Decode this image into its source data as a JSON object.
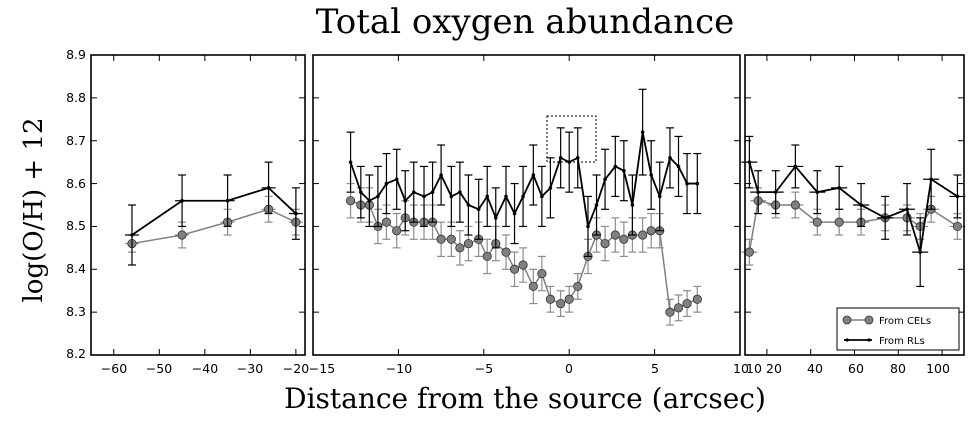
{
  "figure": {
    "title": "Total oxygen abundance",
    "xlabel": "Distance from the source (arcsec)",
    "ylabel": "log(O/H) + 12",
    "y_ticks": [
      "8.2",
      "8.3",
      "8.4",
      "8.5",
      "8.6",
      "8.7",
      "8.8",
      "8.9"
    ]
  },
  "legend": {
    "cels": "From CELs",
    "rls": "From RLs"
  },
  "chart_data": [
    {
      "type": "line",
      "panel": "left",
      "xlim": [
        -65,
        -18
      ],
      "ylim": [
        8.2,
        8.9
      ],
      "x_ticks": [
        "−60",
        "−50",
        "−40",
        "−30",
        "−20"
      ],
      "grid": false,
      "series": [
        {
          "name": "From CELs",
          "color": "#808080",
          "x": [
            -56,
            -45,
            -35,
            -26,
            -20
          ],
          "y": [
            8.46,
            8.48,
            8.51,
            8.54,
            8.51
          ],
          "err": [
            0.02,
            0.03,
            0.03,
            0.03,
            0.03
          ]
        },
        {
          "name": "From RLs",
          "color": "#000000",
          "x": [
            -56,
            -45,
            -35,
            -26,
            -20
          ],
          "y": [
            8.48,
            8.56,
            8.56,
            8.59,
            8.53
          ],
          "err": [
            0.07,
            0.06,
            0.06,
            0.06,
            0.06
          ]
        }
      ]
    },
    {
      "type": "line",
      "panel": "middle",
      "xlim": [
        -15,
        10
      ],
      "ylim": [
        8.2,
        8.9
      ],
      "x_ticks": [
        "−15",
        "−10",
        "−5",
        "0",
        "5",
        "10"
      ],
      "grid": false,
      "box": {
        "x": [
          -1.5,
          1.5
        ],
        "y": [
          8.62,
          8.76
        ]
      },
      "series": [
        {
          "name": "From CELs",
          "color": "#808080",
          "x": [
            -12.8,
            -12.2,
            -11.7,
            -11.2,
            -10.7,
            -10.1,
            -9.6,
            -9.1,
            -8.5,
            -8.0,
            -7.5,
            -6.9,
            -6.4,
            -5.9,
            -5.3,
            -4.8,
            -4.3,
            -3.7,
            -3.2,
            -2.7,
            -2.1,
            -1.6,
            -1.1,
            -0.5,
            0,
            0.5,
            1.1,
            1.6,
            2.1,
            2.7,
            3.2,
            3.7,
            4.3,
            4.8,
            5.3,
            5.9,
            6.4,
            6.9,
            7.5
          ],
          "y": [
            8.56,
            8.55,
            8.55,
            8.5,
            8.51,
            8.49,
            8.52,
            8.51,
            8.51,
            8.51,
            8.47,
            8.47,
            8.45,
            8.46,
            8.47,
            8.43,
            8.46,
            8.44,
            8.4,
            8.41,
            8.36,
            8.39,
            8.33,
            8.32,
            8.33,
            8.36,
            8.43,
            8.48,
            8.46,
            8.48,
            8.47,
            8.48,
            8.48,
            8.49,
            8.49,
            8.3,
            8.31,
            8.32,
            8.33
          ],
          "err": [
            0.04,
            0.04,
            0.04,
            0.04,
            0.04,
            0.04,
            0.04,
            0.04,
            0.04,
            0.04,
            0.04,
            0.04,
            0.04,
            0.04,
            0.04,
            0.04,
            0.04,
            0.04,
            0.04,
            0.04,
            0.04,
            0.04,
            0.03,
            0.03,
            0.03,
            0.03,
            0.04,
            0.04,
            0.04,
            0.04,
            0.04,
            0.04,
            0.04,
            0.04,
            0.04,
            0.03,
            0.03,
            0.03,
            0.03
          ]
        },
        {
          "name": "From RLs",
          "color": "#000000",
          "x": [
            -12.8,
            -12.2,
            -11.7,
            -11.2,
            -10.7,
            -10.1,
            -9.6,
            -9.1,
            -8.5,
            -8.0,
            -7.5,
            -6.9,
            -6.4,
            -5.9,
            -5.3,
            -4.8,
            -4.3,
            -3.7,
            -3.2,
            -2.7,
            -2.1,
            -1.6,
            -1.1,
            -0.5,
            0,
            0.5,
            1.1,
            1.6,
            2.1,
            2.7,
            3.2,
            3.7,
            4.3,
            4.8,
            5.3,
            5.9,
            6.4,
            6.9,
            7.5
          ],
          "y": [
            8.65,
            8.58,
            8.56,
            8.57,
            8.6,
            8.61,
            8.56,
            8.58,
            8.57,
            8.58,
            8.62,
            8.57,
            8.58,
            8.55,
            8.54,
            8.57,
            8.52,
            8.57,
            8.53,
            8.57,
            8.62,
            8.57,
            8.59,
            8.66,
            8.65,
            8.66,
            8.5,
            8.55,
            8.61,
            8.64,
            8.63,
            8.55,
            8.72,
            8.62,
            8.57,
            8.66,
            8.64,
            8.6,
            8.6
          ],
          "err": [
            0.07,
            0.06,
            0.06,
            0.07,
            0.07,
            0.07,
            0.07,
            0.07,
            0.07,
            0.07,
            0.07,
            0.07,
            0.07,
            0.07,
            0.07,
            0.07,
            0.07,
            0.07,
            0.07,
            0.07,
            0.07,
            0.07,
            0.07,
            0.07,
            0.07,
            0.07,
            0.07,
            0.07,
            0.07,
            0.07,
            0.07,
            0.07,
            0.1,
            0.08,
            0.08,
            0.07,
            0.07,
            0.07,
            0.07
          ]
        }
      ]
    },
    {
      "type": "line",
      "panel": "right",
      "xlim": [
        10,
        110
      ],
      "ylim": [
        8.2,
        8.9
      ],
      "x_ticks": [
        "10",
        "20",
        "40",
        "60",
        "80",
        "100"
      ],
      "grid": false,
      "legend": "bottom-right",
      "series": [
        {
          "name": "From CELs",
          "color": "#808080",
          "x": [
            12,
            16,
            24,
            33,
            43,
            53,
            63,
            74,
            84,
            90,
            95,
            107
          ],
          "y": [
            8.44,
            8.56,
            8.55,
            8.55,
            8.51,
            8.51,
            8.51,
            8.52,
            8.52,
            8.5,
            8.54,
            8.5
          ],
          "err": [
            0.03,
            0.03,
            0.03,
            0.03,
            0.03,
            0.03,
            0.03,
            0.03,
            0.03,
            0.03,
            0.03,
            0.03
          ]
        },
        {
          "name": "From RLs",
          "color": "#000000",
          "x": [
            12,
            16,
            24,
            33,
            43,
            53,
            63,
            74,
            84,
            90,
            95,
            107
          ],
          "y": [
            8.65,
            8.58,
            8.58,
            8.64,
            8.58,
            8.59,
            8.55,
            8.52,
            8.54,
            8.44,
            8.61,
            8.57
          ],
          "err": [
            0.06,
            0.05,
            0.05,
            0.05,
            0.05,
            0.05,
            0.05,
            0.05,
            0.06,
            0.08,
            0.07,
            0.05
          ]
        }
      ]
    }
  ]
}
